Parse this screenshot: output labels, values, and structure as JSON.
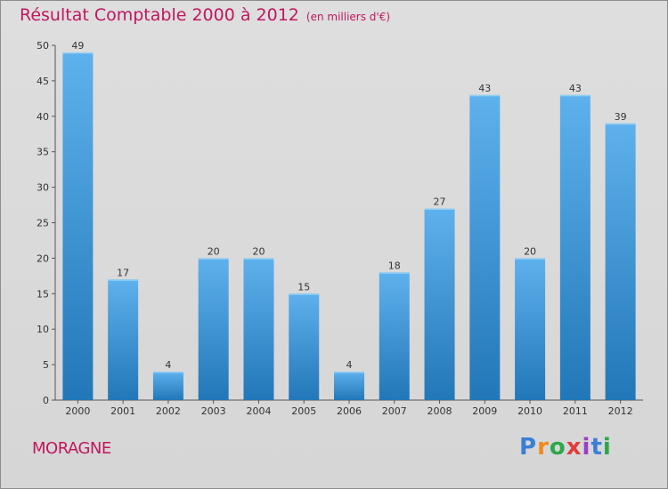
{
  "header": {
    "title": "Résultat Comptable 2000 à 2012",
    "subtitle": "(en milliers d'€)"
  },
  "footer": {
    "commune": "MORAGNE",
    "logo_letters": [
      "P",
      "r",
      "o",
      "x",
      "i",
      "t",
      "i"
    ],
    "logo_colors": [
      "#3a7fd6",
      "#f08a1c",
      "#2aa84a",
      "#e23b3b",
      "#9b3fc4",
      "#3a7fd6",
      "#2aa84a"
    ]
  },
  "chart_data": {
    "type": "bar",
    "title": "Résultat Comptable 2000 à 2012",
    "subtitle": "(en milliers d'€)",
    "xlabel": "",
    "ylabel": "",
    "categories": [
      "2000",
      "2001",
      "2002",
      "2003",
      "2004",
      "2005",
      "2006",
      "2007",
      "2008",
      "2009",
      "2010",
      "2011",
      "2012"
    ],
    "values": [
      49,
      17,
      4,
      20,
      20,
      15,
      4,
      18,
      27,
      43,
      20,
      43,
      39
    ],
    "ylim": [
      0,
      50
    ],
    "yticks": [
      0,
      5,
      10,
      15,
      20,
      25,
      30,
      35,
      40,
      45,
      50
    ],
    "grid": false,
    "bar_color_top": "#5eb1ec",
    "bar_color_bottom": "#2277b8"
  }
}
